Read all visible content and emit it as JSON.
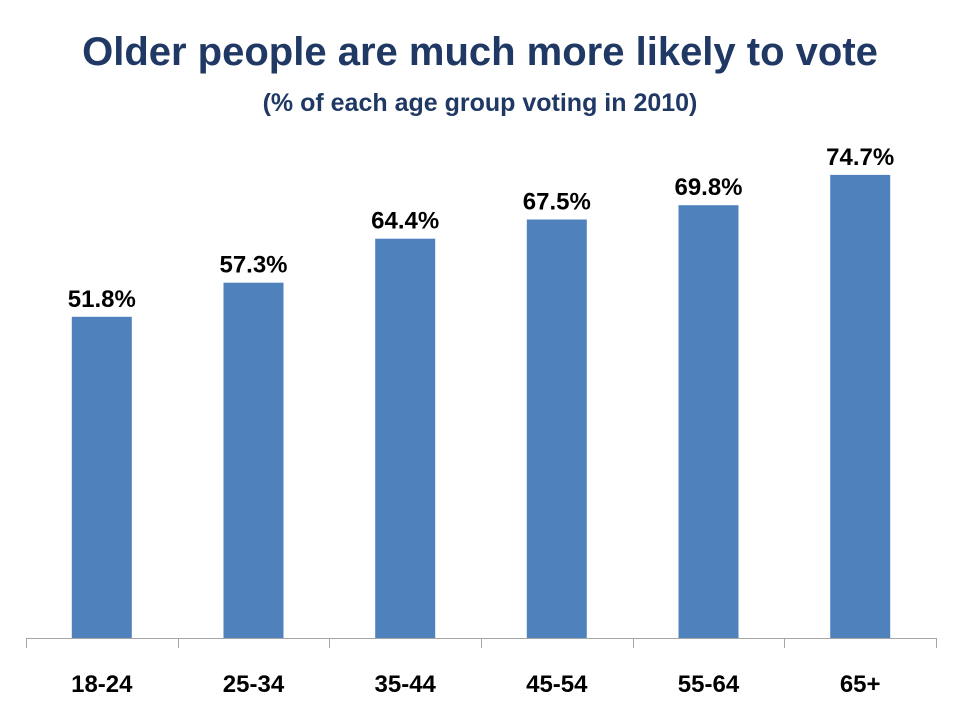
{
  "chart_data": {
    "type": "bar",
    "title": "Older people are much more likely to vote",
    "subtitle": "(% of each age group voting in 2010)",
    "categories": [
      "18-24",
      "25-34",
      "35-44",
      "45-54",
      "55-64",
      "65+"
    ],
    "values": [
      51.8,
      57.3,
      64.4,
      67.5,
      69.8,
      74.7
    ],
    "data_labels": [
      "51.8%",
      "57.3%",
      "64.4%",
      "67.5%",
      "69.8%",
      "74.7%"
    ],
    "xlabel": "",
    "ylabel": "",
    "ylim": [
      0,
      100
    ],
    "grid": false,
    "legend": "none",
    "bar_color": "#4F81BD",
    "title_color": "#1F3864",
    "axis_color": "#A6A6A6"
  }
}
